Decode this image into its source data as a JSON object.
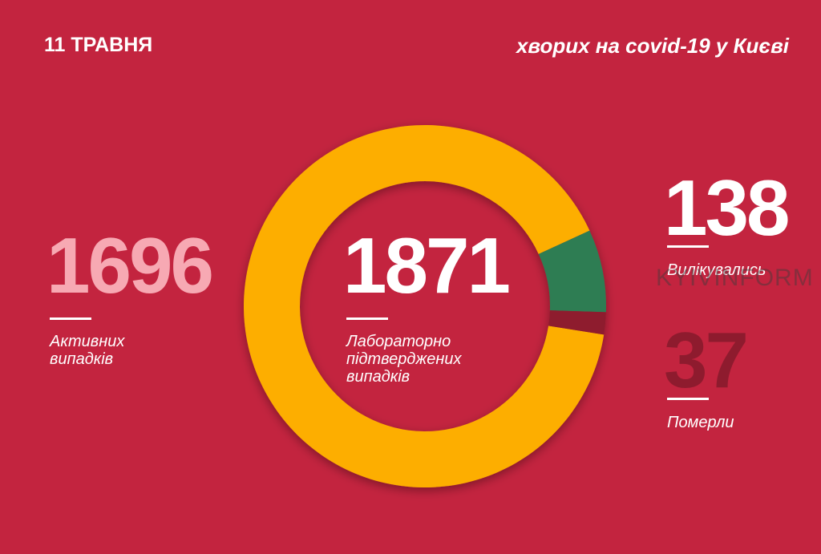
{
  "chart_data": {
    "type": "pie",
    "date": "11 ТРАВНЯ",
    "title": "хворих на covid-19 у Києві",
    "total": 1871,
    "total_label": "Лабораторно підтверджених випадків",
    "categories": [
      "Активних випадків",
      "Вилікувались",
      "Померли"
    ],
    "values": [
      1696,
      138,
      37
    ],
    "colors": [
      "#fdae00",
      "#2f7d52",
      "#8e1b2e"
    ],
    "watermark": "KYIVINFORM"
  }
}
